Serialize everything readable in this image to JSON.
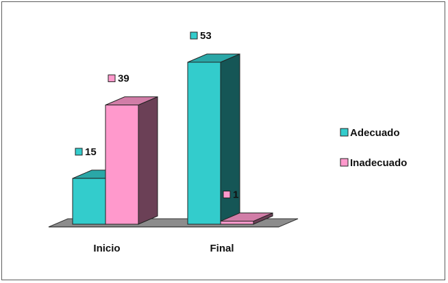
{
  "chart_data": {
    "type": "bar",
    "three_d": true,
    "categories": [
      "Inicio",
      "Final"
    ],
    "series": [
      {
        "name": "Adecuado",
        "values": [
          15,
          53
        ],
        "color": "#33CCCC"
      },
      {
        "name": "Inadecuado",
        "values": [
          39,
          1
        ],
        "color": "#FF99CC"
      }
    ],
    "ylim": [
      0,
      53
    ],
    "title": "",
    "xlabel": "",
    "ylabel": "",
    "grid": false,
    "data_labels": true,
    "legend_position": "right"
  }
}
